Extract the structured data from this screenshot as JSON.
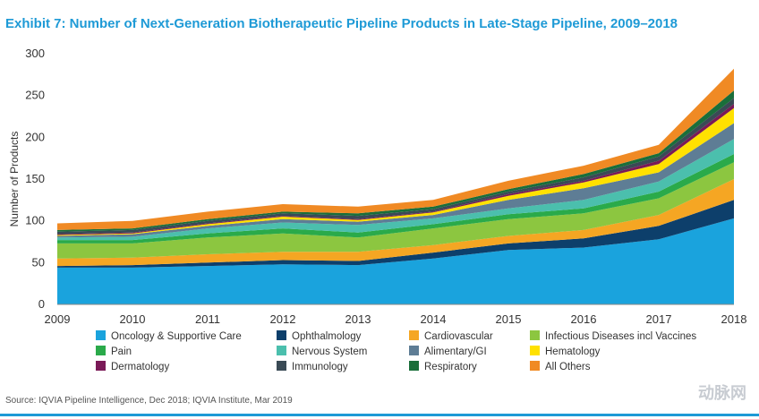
{
  "title": "Exhibit 7: Number of Next-Generation Biotherapeutic Pipeline Products in Late-Stage Pipeline, 2009–2018",
  "source": "Source: IQVIA Pipeline Intelligence, Dec 2018; IQVIA Institute, Mar 2019",
  "watermark": "动脉网",
  "chart_data": {
    "type": "area",
    "stacked": true,
    "title": "Exhibit 7: Number of Next-Generation Biotherapeutic Pipeline Products in Late-Stage Pipeline, 2009–2018",
    "xlabel": "",
    "ylabel": "Number of Products",
    "ylim": [
      0,
      300
    ],
    "yticks": [
      0,
      50,
      100,
      150,
      200,
      250,
      300
    ],
    "grid": false,
    "legend_position": "bottom",
    "x": [
      "2009",
      "2010",
      "2011",
      "2012",
      "2013",
      "2014",
      "2015",
      "2016",
      "2017",
      "2018"
    ],
    "series": [
      {
        "name": "Oncology & Supportive Care",
        "color": "#1aa3dd",
        "values": [
          44,
          44,
          46,
          48,
          47,
          55,
          65,
          68,
          78,
          103
        ]
      },
      {
        "name": "Ophthalmology",
        "color": "#0d3f6b",
        "values": [
          2,
          3,
          4,
          5,
          5,
          7,
          8,
          11,
          16,
          22
        ]
      },
      {
        "name": "Cardiovascular",
        "color": "#f5a623",
        "values": [
          9,
          9,
          10,
          10,
          11,
          9,
          9,
          10,
          13,
          25
        ]
      },
      {
        "name": "Infectious Diseases incl Vaccines",
        "color": "#8cc640",
        "values": [
          18,
          17,
          20,
          22,
          17,
          20,
          20,
          20,
          20,
          20
        ]
      },
      {
        "name": "Pain",
        "color": "#2aaa4a",
        "values": [
          4,
          4,
          5,
          6,
          6,
          5,
          6,
          6,
          8,
          10
        ]
      },
      {
        "name": "Nervous System",
        "color": "#4bbfad",
        "values": [
          3,
          4,
          6,
          7,
          9,
          7,
          7,
          10,
          12,
          18
        ]
      },
      {
        "name": "Alimentary/GI",
        "color": "#5e7d95",
        "values": [
          2,
          3,
          3,
          4,
          4,
          4,
          10,
          14,
          11,
          19
        ]
      },
      {
        "name": "Hematology",
        "color": "#ffe100",
        "values": [
          1,
          1,
          2,
          3,
          2,
          3,
          5,
          7,
          10,
          18
        ]
      },
      {
        "name": "Dermatology",
        "color": "#7a1a57",
        "values": [
          1,
          1,
          1,
          1,
          1,
          1,
          2,
          2,
          4,
          5
        ]
      },
      {
        "name": "Immunology",
        "color": "#3a4a55",
        "values": [
          3,
          3,
          3,
          3,
          4,
          3,
          3,
          4,
          5,
          7
        ]
      },
      {
        "name": "Respiratory",
        "color": "#1a6e3a",
        "values": [
          2,
          2,
          2,
          2,
          3,
          3,
          3,
          4,
          4,
          9
        ]
      },
      {
        "name": "All Others",
        "color": "#f08a24",
        "values": [
          8,
          9,
          9,
          9,
          8,
          8,
          10,
          10,
          10,
          26
        ]
      }
    ]
  }
}
